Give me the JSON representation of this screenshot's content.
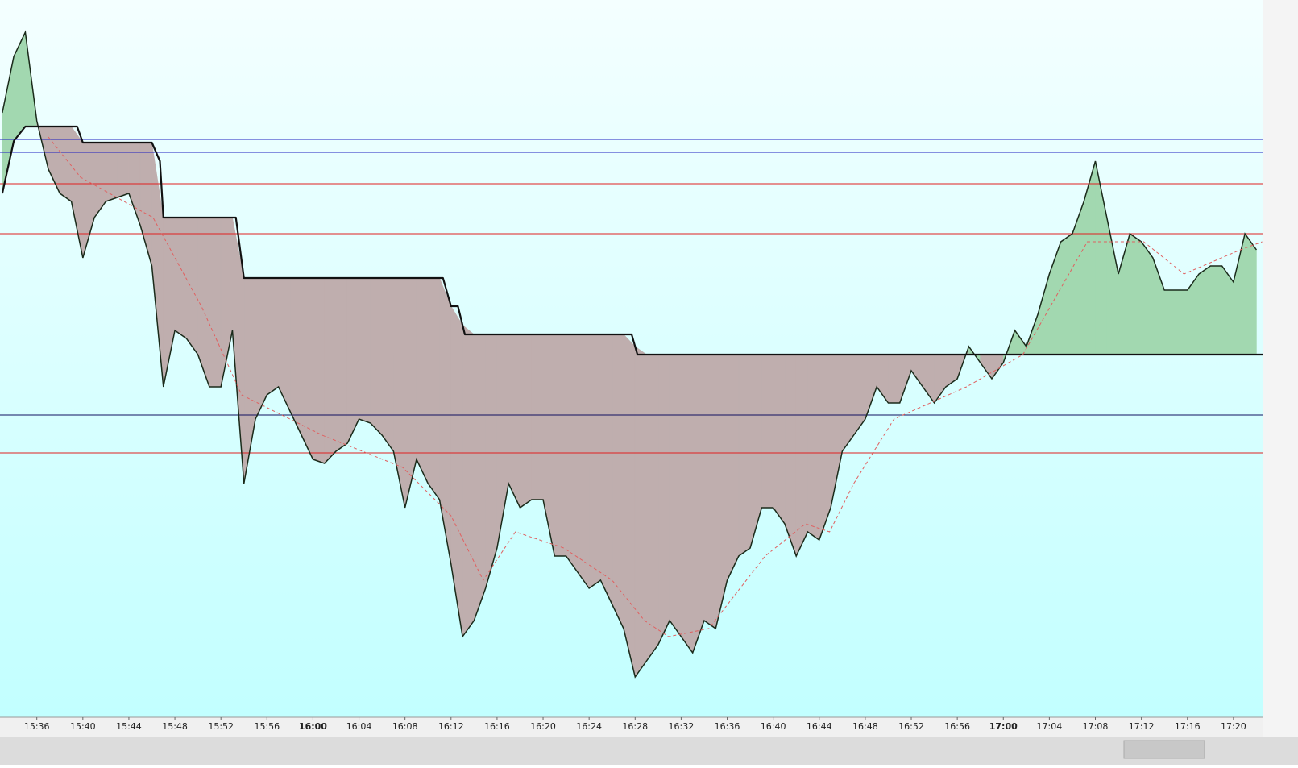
{
  "chart_data": {
    "type": "line",
    "xlim": [
      932.8,
      1042.6
    ],
    "ylim": [
      0,
      890
    ],
    "xticks": [
      {
        "value": 936,
        "label": "15:36"
      },
      {
        "value": 940,
        "label": "15:40"
      },
      {
        "value": 944,
        "label": "15:44"
      },
      {
        "value": 948,
        "label": "15:48"
      },
      {
        "value": 952,
        "label": "15:52"
      },
      {
        "value": 956,
        "label": "15:56"
      },
      {
        "value": 960,
        "label": "16:00"
      },
      {
        "value": 964,
        "label": "16:04"
      },
      {
        "value": 968,
        "label": "16:08"
      },
      {
        "value": 972,
        "label": "16:12"
      },
      {
        "value": 976,
        "label": "16:16"
      },
      {
        "value": 980,
        "label": "16:20"
      },
      {
        "value": 984,
        "label": "16:24"
      },
      {
        "value": 988,
        "label": "16:28"
      },
      {
        "value": 992,
        "label": "16:32"
      },
      {
        "value": 996,
        "label": "16:36"
      },
      {
        "value": 1000,
        "label": "16:40"
      },
      {
        "value": 1004,
        "label": "16:44"
      },
      {
        "value": 1008,
        "label": "16:48"
      },
      {
        "value": 1012,
        "label": "16:52"
      },
      {
        "value": 1016,
        "label": "16:56"
      },
      {
        "value": 1020,
        "label": "17:00"
      },
      {
        "value": 1024,
        "label": "17:04"
      },
      {
        "value": 1028,
        "label": "17:08"
      },
      {
        "value": 1032,
        "label": "17:12"
      },
      {
        "value": 1036,
        "label": "17:16"
      },
      {
        "value": 1040,
        "label": "17:20"
      }
    ],
    "series": [
      {
        "role": "price",
        "color": "#1a2a1a",
        "x": [
          933,
          934,
          935,
          936,
          937,
          938,
          939,
          940,
          941,
          942,
          943,
          944,
          945,
          946,
          947,
          948,
          949,
          950,
          951,
          952,
          953,
          954,
          955,
          956,
          957,
          958,
          959,
          960,
          961,
          962,
          963,
          964,
          965,
          966,
          967,
          968,
          969,
          970,
          971,
          972,
          973,
          974,
          975,
          976,
          977,
          978,
          979,
          980,
          981,
          982,
          983,
          984,
          985,
          986,
          987,
          988,
          989,
          990,
          991,
          992,
          993,
          994,
          995,
          996,
          997,
          998,
          999,
          1000,
          1001,
          1002,
          1003,
          1004,
          1005,
          1006,
          1007,
          1008,
          1009,
          1010,
          1011,
          1012,
          1013,
          1014,
          1015,
          1016,
          1017,
          1018,
          1019,
          1020,
          1021,
          1022,
          1023,
          1024,
          1025,
          1026,
          1027,
          1028,
          1029,
          1030,
          1031,
          1032,
          1033,
          1034,
          1035,
          1036,
          1037,
          1038,
          1039,
          1040,
          1041,
          1042
        ],
        "values": [
          750,
          820,
          850,
          740,
          680,
          650,
          640,
          570,
          620,
          640,
          645,
          650,
          610,
          560,
          410,
          480,
          470,
          450,
          410,
          410,
          480,
          290,
          370,
          400,
          410,
          380,
          350,
          320,
          315,
          330,
          340,
          370,
          365,
          350,
          330,
          260,
          320,
          290,
          270,
          190,
          100,
          120,
          160,
          210,
          290,
          260,
          270,
          270,
          200,
          200,
          180,
          160,
          170,
          140,
          110,
          50,
          70,
          90,
          120,
          100,
          80,
          120,
          110,
          170,
          200,
          210,
          260,
          260,
          240,
          200,
          230,
          220,
          260,
          330,
          350,
          370,
          410,
          390,
          390,
          430,
          410,
          390,
          410,
          420,
          460,
          440,
          420,
          440,
          480,
          460,
          500,
          550,
          590,
          600,
          640,
          690,
          620,
          550,
          600,
          590,
          570,
          530,
          530,
          530,
          550,
          560,
          560,
          540,
          600,
          580
        ]
      },
      {
        "role": "stop",
        "color": "#111111",
        "x": [
          933,
          934,
          935,
          939.5,
          940,
          946,
          946.7,
          947,
          953.3,
          954,
          971.3,
          972,
          972.6,
          973.2,
          987.7,
          988.2,
          1042.6
        ],
        "values": [
          650,
          715,
          733,
          733,
          713,
          713,
          690,
          620,
          620,
          545,
          545,
          510,
          510,
          475,
          475,
          450,
          450
        ]
      },
      {
        "role": "average",
        "color": "#e06060",
        "x": [
          937.0,
          939.8,
          946.1,
          950.3,
          953.8,
          960.8,
          967.8,
          972.0,
          974.8,
          977.6,
          981.8,
          986.0,
          988.8,
          990.9,
          994.4,
          999.3,
          1002.8,
          1004.9,
          1007.0,
          1010.5,
          1016.8,
          1021.7,
          1027.3,
          1032.2,
          1035.7,
          1040.6,
          1042.5
        ],
        "values": [
          720,
          670,
          620,
          510,
          400,
          350,
          310,
          250,
          170,
          230,
          210,
          170,
          120,
          100,
          110,
          200,
          240,
          230,
          290,
          370,
          410,
          450,
          590,
          590,
          550,
          580,
          590
        ]
      }
    ],
    "levels": [
      {
        "value": 717,
        "color": "#2020c0"
      },
      {
        "value": 701,
        "color": "#2020c0"
      },
      {
        "value": 375,
        "color": "#101060"
      },
      {
        "value": 662,
        "color": "#e02020"
      },
      {
        "value": 600,
        "color": "#e02020"
      },
      {
        "value": 328,
        "color": "#e02020"
      }
    ],
    "fill_colors": {
      "above": "#a2d8b0",
      "below": "#bfaeae"
    }
  }
}
